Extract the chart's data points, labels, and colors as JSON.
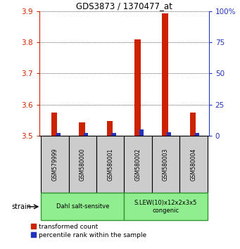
{
  "title": "GDS3873 / 1370477_at",
  "samples": [
    "GSM579999",
    "GSM580000",
    "GSM580001",
    "GSM580002",
    "GSM580003",
    "GSM580004"
  ],
  "red_values": [
    3.575,
    3.543,
    3.547,
    3.81,
    3.893,
    3.575
  ],
  "blue_values": [
    2.5,
    2.5,
    2.5,
    5.0,
    2.8,
    2.5
  ],
  "red_base": 3.5,
  "ylim_left": [
    3.5,
    3.9
  ],
  "ylim_right": [
    0,
    100
  ],
  "yticks_left": [
    3.5,
    3.6,
    3.7,
    3.8,
    3.9
  ],
  "yticks_right": [
    0,
    25,
    50,
    75,
    100
  ],
  "ytick_labels_right": [
    "0",
    "25",
    "50",
    "75",
    "100%"
  ],
  "legend_red": "transformed count",
  "legend_blue": "percentile rank within the sample",
  "red_color": "#cc2200",
  "blue_color": "#2233bb",
  "axis_left_color": "#cc2200",
  "axis_right_color": "#2233bb",
  "bg_sample": "#cccccc",
  "bg_group": "#90ee90",
  "group_edge": "#339933",
  "group1_label": "Dahl salt-sensitve",
  "group2_label": "S.LEW(10)x12x2x3x5\ncongenic",
  "strain_label": "strain"
}
